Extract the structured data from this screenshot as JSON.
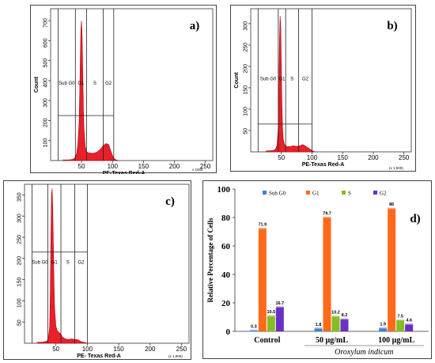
{
  "chart_data": [
    {
      "panel": "a)",
      "type": "area",
      "xlabel": "PE-Texas Red-A",
      "ylabel": "Count",
      "x_multiplier": "x 1000",
      "xlim": [
        0,
        262
      ],
      "ylim": [
        0,
        760
      ],
      "xticks": [
        "50",
        "100",
        "150",
        "200",
        "250"
      ],
      "yticks": [
        "100",
        "200",
        "300",
        "400",
        "500",
        "600",
        "700"
      ],
      "gate_labels": [
        "Sub G0",
        "G1",
        "S",
        "G2"
      ],
      "gates": [
        12,
        40,
        58,
        85,
        102
      ],
      "gate_level": 225,
      "x": [
        20,
        30,
        35,
        38,
        40,
        42,
        44,
        46,
        47,
        48,
        49,
        50,
        51,
        52,
        53,
        54,
        56,
        58,
        60,
        63,
        66,
        70,
        75,
        80,
        85,
        90,
        94,
        97,
        100,
        103,
        106,
        110
      ],
      "y": [
        3,
        4,
        6,
        10,
        18,
        35,
        80,
        190,
        340,
        520,
        660,
        700,
        610,
        430,
        250,
        150,
        70,
        45,
        40,
        38,
        36,
        37,
        42,
        55,
        75,
        85,
        80,
        50,
        25,
        8,
        3,
        0
      ]
    },
    {
      "panel": "b)",
      "type": "area",
      "xlabel": "PE-Texas Red-A",
      "ylabel": "Count",
      "x_multiplier": "(x 1,000)",
      "xlim": [
        0,
        262
      ],
      "ylim": [
        0,
        335
      ],
      "xticks": [
        "50",
        "100",
        "150",
        "200",
        "250"
      ],
      "yticks": [
        "50",
        "100",
        "150",
        "200",
        "250",
        "300"
      ],
      "gate_labels": [
        "Sub G0",
        "G1",
        "S",
        "G2"
      ],
      "gate_label_markers": [
        "",
        "|",
        "|",
        ""
      ],
      "gates": [
        12,
        45,
        57,
        78,
        100
      ],
      "gate_level": 65,
      "x": [
        25,
        35,
        40,
        43,
        45,
        46,
        47,
        48,
        49,
        50,
        51,
        52,
        53,
        55,
        57,
        60,
        65,
        70,
        75,
        80,
        85,
        90,
        95,
        100,
        105
      ],
      "y": [
        2,
        3,
        5,
        15,
        60,
        160,
        260,
        318,
        290,
        200,
        110,
        55,
        30,
        18,
        14,
        12,
        13,
        14,
        13,
        14,
        17,
        13,
        8,
        3,
        0
      ]
    },
    {
      "panel": "c)",
      "type": "area",
      "xlabel": "PE- Texas Red-A",
      "ylabel": "",
      "x_multiplier": "(x 1,000)",
      "xlim": [
        0,
        262
      ],
      "ylim": [
        0,
        375
      ],
      "xticks": [
        "50",
        "100",
        "150",
        "200",
        "250"
      ],
      "yticks": [
        "50",
        "100",
        "150",
        "200",
        "250",
        "300",
        "350"
      ],
      "gate_labels": [
        "Sub G0",
        "G1",
        "S",
        "G2"
      ],
      "gates": [
        12,
        37,
        58,
        80,
        100
      ],
      "gate_level": 215,
      "x": [
        20,
        30,
        36,
        38,
        40,
        41,
        42,
        43,
        44,
        45,
        46,
        47,
        48,
        50,
        52,
        55,
        58,
        60,
        65,
        70,
        75,
        80,
        85,
        90,
        95,
        100
      ],
      "y": [
        2,
        3,
        5,
        12,
        40,
        110,
        240,
        350,
        365,
        320,
        230,
        140,
        80,
        40,
        30,
        25,
        22,
        15,
        10,
        9,
        10,
        9,
        8,
        4,
        2,
        0
      ]
    },
    {
      "panel": "d)",
      "type": "bar",
      "categories": [
        "Control",
        "50 µg/mL",
        "100 µg/mL"
      ],
      "category_group_label": "Oroxylum indicum",
      "ylabel": "Relative Percentage of Cells",
      "ylim": [
        0,
        100
      ],
      "yticks": [
        "0",
        "20",
        "40",
        "60",
        "80",
        "100"
      ],
      "series": [
        {
          "name": "Sub G0",
          "color": "#3f7fd0",
          "values": [
            0.3,
            1.8,
            1.9
          ],
          "labels": [
            "0.3",
            "1.8",
            "1.9"
          ]
        },
        {
          "name": "G1",
          "color": "#ff6a1a",
          "values": [
            71.9,
            79.7,
            86
          ],
          "labels": [
            "71.9",
            "79.7",
            "86"
          ]
        },
        {
          "name": "S",
          "color": "#86bd22",
          "values": [
            10.5,
            10.2,
            7.5
          ],
          "labels": [
            "10.5",
            "10.2",
            "7.5"
          ]
        },
        {
          "name": "G2",
          "color": "#6a2fc4",
          "values": [
            16.7,
            8.2,
            4.6
          ],
          "labels": [
            "16.7",
            "8.2",
            "4.6"
          ]
        }
      ]
    }
  ],
  "style": {
    "histogram_fill": "#e8202a",
    "histogram_stroke": "#b00010"
  }
}
